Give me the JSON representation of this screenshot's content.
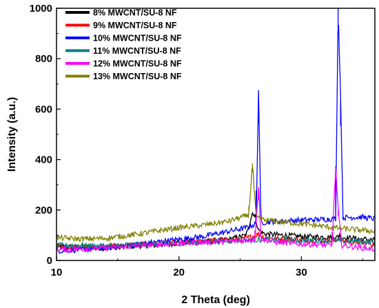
{
  "chart_data": {
    "type": "line",
    "xlabel": "2 Theta (deg)",
    "ylabel": "Intensity (a.u.)",
    "xlim": [
      10,
      36
    ],
    "ylim": [
      0,
      1000
    ],
    "x_ticks": [
      10,
      20,
      30
    ],
    "y_ticks": [
      0,
      200,
      400,
      600,
      800,
      1000
    ],
    "legend_position": "top-left",
    "grid": false,
    "series": [
      {
        "name": "8% MWCNT/SU-8 NF",
        "color": "#000000",
        "points": [
          [
            10,
            55
          ],
          [
            14,
            50
          ],
          [
            18,
            62
          ],
          [
            22,
            75
          ],
          [
            24,
            82
          ],
          [
            25.5,
            100
          ],
          [
            26.0,
            190
          ],
          [
            26.2,
            180
          ],
          [
            26.5,
            120
          ],
          [
            27,
            105
          ],
          [
            30,
            95
          ],
          [
            33,
            92
          ],
          [
            33.1,
            105
          ],
          [
            33.3,
            92
          ],
          [
            36,
            80
          ]
        ]
      },
      {
        "name": "9% MWCNT/SU-8 NF",
        "color": "#ff0000",
        "points": [
          [
            10,
            52
          ],
          [
            14,
            55
          ],
          [
            18,
            68
          ],
          [
            22,
            78
          ],
          [
            25,
            82
          ],
          [
            26.0,
            95
          ],
          [
            26.5,
            105
          ],
          [
            27,
            90
          ],
          [
            30,
            80
          ],
          [
            32.8,
            78
          ],
          [
            33.1,
            95
          ],
          [
            33.3,
            78
          ],
          [
            36,
            65
          ]
        ]
      },
      {
        "name": "10% MWCNT/SU-8 NF",
        "color": "#0000ff",
        "points": [
          [
            10,
            38
          ],
          [
            14,
            48
          ],
          [
            18,
            72
          ],
          [
            22,
            95
          ],
          [
            24,
            115
          ],
          [
            25.5,
            130
          ],
          [
            26.3,
            145
          ],
          [
            26.5,
            675
          ],
          [
            26.7,
            150
          ],
          [
            28,
            155
          ],
          [
            30,
            160
          ],
          [
            32.8,
            165
          ],
          [
            33.0,
            1000
          ],
          [
            33.2,
            655
          ],
          [
            33.4,
            170
          ],
          [
            35,
            172
          ],
          [
            36,
            165
          ]
        ]
      },
      {
        "name": "11% MWCNT/SU-8 NF",
        "color": "#008080",
        "points": [
          [
            10,
            60
          ],
          [
            14,
            58
          ],
          [
            18,
            65
          ],
          [
            22,
            72
          ],
          [
            25,
            80
          ],
          [
            26.5,
            82
          ],
          [
            30,
            80
          ],
          [
            33,
            78
          ],
          [
            36,
            72
          ]
        ]
      },
      {
        "name": "12% MWCNT/SU-8 NF",
        "color": "#ff00ff",
        "points": [
          [
            10,
            42
          ],
          [
            14,
            50
          ],
          [
            18,
            62
          ],
          [
            22,
            72
          ],
          [
            25,
            78
          ],
          [
            26.2,
            85
          ],
          [
            26.5,
            290
          ],
          [
            26.7,
            85
          ],
          [
            28,
            72
          ],
          [
            30,
            65
          ],
          [
            32.5,
            60
          ],
          [
            32.8,
            370
          ],
          [
            33.0,
            200
          ],
          [
            33.3,
            60
          ],
          [
            35,
            50
          ],
          [
            36,
            45
          ]
        ]
      },
      {
        "name": "13% MWCNT/SU-8 NF",
        "color": "#808000",
        "points": [
          [
            10,
            90
          ],
          [
            12,
            85
          ],
          [
            14,
            88
          ],
          [
            16,
            100
          ],
          [
            18,
            115
          ],
          [
            20,
            130
          ],
          [
            22,
            140
          ],
          [
            24,
            155
          ],
          [
            25.0,
            170
          ],
          [
            25.7,
            180
          ],
          [
            26.0,
            385
          ],
          [
            26.3,
            170
          ],
          [
            27,
            160
          ],
          [
            29,
            150
          ],
          [
            31,
            140
          ],
          [
            33,
            128
          ],
          [
            35,
            120
          ],
          [
            36,
            115
          ]
        ]
      }
    ]
  }
}
